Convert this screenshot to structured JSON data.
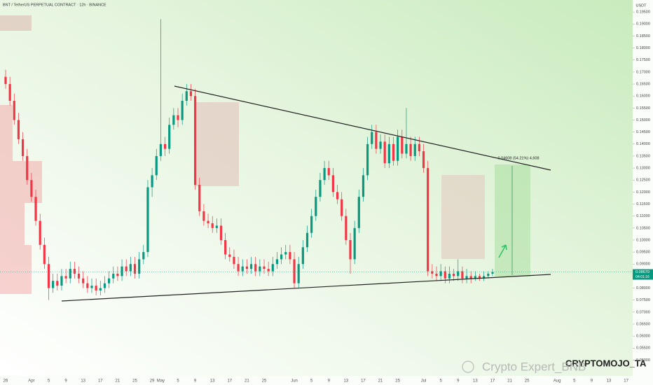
{
  "chart_data": {
    "type": "candlestick",
    "title": "BNT / TetherUS PERPETUAL CONTRACT · 12h · BINANCE",
    "currency": "USDT",
    "measure_label": "0.04608 (54.21%) 4,608",
    "price_label": "0.08670",
    "countdown": "04:01:16",
    "watermarks": [
      "CRYPTOMOJO_TA",
      "Crypto Expert_BNB"
    ],
    "up_color": "#089981",
    "down_color": "#f23645",
    "grid": false,
    "ylim": [
      0.044,
      0.2
    ],
    "yticks": [
      {
        "value": 0.05,
        "label": "0.05000"
      },
      {
        "value": 0.055,
        "label": "0.05500"
      },
      {
        "value": 0.06,
        "label": "0.06000"
      },
      {
        "value": 0.065,
        "label": "0.06500"
      },
      {
        "value": 0.07,
        "label": "0.07000"
      },
      {
        "value": 0.075,
        "label": "0.07500"
      },
      {
        "value": 0.08,
        "label": "0.08000"
      },
      {
        "value": 0.085,
        "label": "0.08500"
      },
      {
        "value": 0.09,
        "label": "0.09000"
      },
      {
        "value": 0.095,
        "label": "0.09500"
      },
      {
        "value": 0.1,
        "label": "0.10000"
      },
      {
        "value": 0.105,
        "label": "0.10500"
      },
      {
        "value": 0.11,
        "label": "0.11000"
      },
      {
        "value": 0.115,
        "label": "0.11500"
      },
      {
        "value": 0.12,
        "label": "0.12000"
      },
      {
        "value": 0.125,
        "label": "0.12500"
      },
      {
        "value": 0.13,
        "label": "0.13000"
      },
      {
        "value": 0.135,
        "label": "0.13500"
      },
      {
        "value": 0.14,
        "label": "0.14000"
      },
      {
        "value": 0.145,
        "label": "0.14500"
      },
      {
        "value": 0.15,
        "label": "0.15000"
      },
      {
        "value": 0.155,
        "label": "0.15500"
      },
      {
        "value": 0.16,
        "label": "0.16000"
      },
      {
        "value": 0.165,
        "label": "0.16500"
      },
      {
        "value": 0.17,
        "label": "0.17000"
      },
      {
        "value": 0.175,
        "label": "0.17500"
      },
      {
        "value": 0.18,
        "label": "0.18000"
      },
      {
        "value": 0.185,
        "label": "0.18500"
      },
      {
        "value": 0.19,
        "label": "0.19000"
      },
      {
        "value": 0.195,
        "label": "0.19500"
      }
    ],
    "categories": [
      "26",
      null,
      null,
      null,
      null,
      null,
      "Apr",
      null,
      null,
      null,
      "5",
      null,
      null,
      null,
      "9",
      null,
      null,
      null,
      "13",
      null,
      null,
      null,
      "17",
      null,
      null,
      null,
      "21",
      null,
      null,
      null,
      "25",
      null,
      null,
      null,
      "29",
      null,
      "May",
      null,
      null,
      null,
      "5",
      null,
      null,
      null,
      "9",
      null,
      null,
      null,
      "13",
      null,
      null,
      null,
      "17",
      null,
      null,
      null,
      "21",
      null,
      null,
      null,
      "25",
      null,
      null,
      null,
      null,
      null,
      null,
      "Jun",
      null,
      null,
      null,
      "5",
      null,
      null,
      null,
      "9",
      null,
      null,
      null,
      "13",
      null,
      null,
      null,
      "17",
      null,
      null,
      null,
      "21",
      null,
      null,
      null,
      "25",
      null,
      null,
      null,
      null,
      null,
      "Jul",
      null,
      null,
      null,
      "5",
      null,
      null,
      null,
      "9",
      null,
      null,
      null,
      "13",
      null,
      null,
      null,
      "17",
      null,
      null,
      null,
      "21",
      null,
      null,
      null,
      "25",
      null,
      null,
      null,
      null,
      null,
      null,
      "Aug",
      null,
      null,
      null,
      "5",
      null,
      null,
      null,
      "9",
      null,
      null,
      null,
      "13",
      null,
      null,
      null,
      "17"
    ],
    "ohlc": [
      [
        0.168,
        0.171,
        0.163,
        0.165
      ],
      [
        0.165,
        0.168,
        0.156,
        0.158
      ],
      [
        0.158,
        0.161,
        0.148,
        0.15
      ],
      [
        0.15,
        0.153,
        0.14,
        0.142
      ],
      [
        0.142,
        0.145,
        0.133,
        0.135
      ],
      [
        0.135,
        0.138,
        0.123,
        0.125
      ],
      [
        0.125,
        0.128,
        0.116,
        0.118
      ],
      [
        0.118,
        0.121,
        0.106,
        0.108
      ],
      [
        0.108,
        0.111,
        0.096,
        0.098
      ],
      [
        0.098,
        0.101,
        0.088,
        0.09
      ],
      [
        0.09,
        0.093,
        0.075,
        0.08
      ],
      [
        0.08,
        0.086,
        0.078,
        0.083
      ],
      [
        0.083,
        0.086,
        0.079,
        0.081
      ],
      [
        0.081,
        0.088,
        0.079,
        0.085
      ],
      [
        0.085,
        0.088,
        0.082,
        0.084
      ],
      [
        0.084,
        0.091,
        0.082,
        0.088
      ],
      [
        0.088,
        0.091,
        0.084,
        0.086
      ],
      [
        0.086,
        0.089,
        0.082,
        0.084
      ],
      [
        0.084,
        0.087,
        0.08,
        0.082
      ],
      [
        0.082,
        0.085,
        0.078,
        0.08
      ],
      [
        0.08,
        0.084,
        0.078,
        0.081
      ],
      [
        0.081,
        0.084,
        0.077,
        0.079
      ],
      [
        0.079,
        0.083,
        0.077,
        0.08
      ],
      [
        0.08,
        0.085,
        0.078,
        0.082
      ],
      [
        0.082,
        0.087,
        0.08,
        0.084
      ],
      [
        0.084,
        0.089,
        0.082,
        0.086
      ],
      [
        0.086,
        0.089,
        0.083,
        0.085
      ],
      [
        0.085,
        0.092,
        0.083,
        0.089
      ],
      [
        0.089,
        0.092,
        0.085,
        0.087
      ],
      [
        0.087,
        0.093,
        0.085,
        0.09
      ],
      [
        0.09,
        0.093,
        0.084,
        0.086
      ],
      [
        0.086,
        0.095,
        0.084,
        0.092
      ],
      [
        0.092,
        0.098,
        0.09,
        0.095
      ],
      [
        0.095,
        0.125,
        0.093,
        0.122
      ],
      [
        0.122,
        0.13,
        0.118,
        0.127
      ],
      [
        0.127,
        0.138,
        0.125,
        0.135
      ],
      [
        0.135,
        0.192,
        0.133,
        0.14
      ],
      [
        0.14,
        0.143,
        0.135,
        0.138
      ],
      [
        0.138,
        0.151,
        0.136,
        0.148
      ],
      [
        0.148,
        0.155,
        0.146,
        0.152
      ],
      [
        0.152,
        0.155,
        0.147,
        0.15
      ],
      [
        0.15,
        0.161,
        0.148,
        0.158
      ],
      [
        0.158,
        0.165,
        0.156,
        0.162
      ],
      [
        0.162,
        0.165,
        0.158,
        0.16
      ],
      [
        0.16,
        0.163,
        0.121,
        0.123
      ],
      [
        0.123,
        0.126,
        0.11,
        0.112
      ],
      [
        0.112,
        0.115,
        0.106,
        0.108
      ],
      [
        0.108,
        0.111,
        0.105,
        0.107
      ],
      [
        0.107,
        0.11,
        0.103,
        0.105
      ],
      [
        0.105,
        0.109,
        0.103,
        0.106
      ],
      [
        0.106,
        0.109,
        0.098,
        0.1
      ],
      [
        0.1,
        0.103,
        0.092,
        0.094
      ],
      [
        0.094,
        0.097,
        0.091,
        0.093
      ],
      [
        0.093,
        0.096,
        0.088,
        0.09
      ],
      [
        0.09,
        0.093,
        0.085,
        0.087
      ],
      [
        0.087,
        0.092,
        0.085,
        0.089
      ],
      [
        0.089,
        0.092,
        0.086,
        0.088
      ],
      [
        0.088,
        0.093,
        0.086,
        0.09
      ],
      [
        0.09,
        0.093,
        0.085,
        0.087
      ],
      [
        0.087,
        0.092,
        0.085,
        0.089
      ],
      [
        0.089,
        0.092,
        0.086,
        0.088
      ],
      [
        0.088,
        0.091,
        0.085,
        0.087
      ],
      [
        0.087,
        0.093,
        0.085,
        0.09
      ],
      [
        0.09,
        0.095,
        0.088,
        0.092
      ],
      [
        0.092,
        0.097,
        0.09,
        0.094
      ],
      [
        0.094,
        0.098,
        0.092,
        0.095
      ],
      [
        0.095,
        0.098,
        0.09,
        0.092
      ],
      [
        0.092,
        0.095,
        0.08,
        0.082
      ],
      [
        0.082,
        0.093,
        0.08,
        0.09
      ],
      [
        0.09,
        0.1,
        0.088,
        0.097
      ],
      [
        0.097,
        0.106,
        0.095,
        0.103
      ],
      [
        0.103,
        0.113,
        0.101,
        0.11
      ],
      [
        0.11,
        0.121,
        0.108,
        0.118
      ],
      [
        0.118,
        0.128,
        0.116,
        0.125
      ],
      [
        0.125,
        0.133,
        0.123,
        0.13
      ],
      [
        0.13,
        0.133,
        0.125,
        0.127
      ],
      [
        0.127,
        0.13,
        0.118,
        0.12
      ],
      [
        0.12,
        0.123,
        0.115,
        0.117
      ],
      [
        0.117,
        0.12,
        0.108,
        0.11
      ],
      [
        0.11,
        0.113,
        0.098,
        0.1
      ],
      [
        0.1,
        0.103,
        0.086,
        0.092
      ],
      [
        0.092,
        0.108,
        0.09,
        0.105
      ],
      [
        0.105,
        0.121,
        0.103,
        0.118
      ],
      [
        0.118,
        0.13,
        0.116,
        0.127
      ],
      [
        0.127,
        0.143,
        0.125,
        0.14
      ],
      [
        0.14,
        0.148,
        0.138,
        0.145
      ],
      [
        0.145,
        0.148,
        0.136,
        0.138
      ],
      [
        0.138,
        0.144,
        0.136,
        0.141
      ],
      [
        0.141,
        0.144,
        0.13,
        0.132
      ],
      [
        0.132,
        0.143,
        0.13,
        0.14
      ],
      [
        0.14,
        0.143,
        0.131,
        0.133
      ],
      [
        0.133,
        0.146,
        0.131,
        0.143
      ],
      [
        0.143,
        0.146,
        0.134,
        0.136
      ],
      [
        0.136,
        0.155,
        0.134,
        0.14
      ],
      [
        0.14,
        0.143,
        0.133,
        0.135
      ],
      [
        0.135,
        0.143,
        0.133,
        0.14
      ],
      [
        0.14,
        0.143,
        0.135,
        0.137
      ],
      [
        0.137,
        0.14,
        0.128,
        0.13
      ],
      [
        0.13,
        0.133,
        0.085,
        0.087
      ],
      [
        0.087,
        0.09,
        0.084,
        0.086
      ],
      [
        0.086,
        0.089,
        0.083,
        0.085
      ],
      [
        0.085,
        0.09,
        0.083,
        0.087
      ],
      [
        0.087,
        0.089,
        0.082,
        0.084
      ],
      [
        0.084,
        0.089,
        0.082,
        0.086
      ],
      [
        0.086,
        0.088,
        0.083,
        0.085
      ],
      [
        0.085,
        0.092,
        0.083,
        0.087
      ],
      [
        0.087,
        0.089,
        0.082,
        0.084
      ],
      [
        0.084,
        0.088,
        0.082,
        0.085
      ],
      [
        0.085,
        0.087,
        0.082,
        0.084
      ],
      [
        0.084,
        0.087,
        0.083,
        0.085
      ],
      [
        0.085,
        0.086,
        0.083,
        0.084
      ],
      [
        0.084,
        0.087,
        0.083,
        0.085
      ],
      [
        0.085,
        0.087,
        0.084,
        0.086
      ],
      [
        0.086,
        0.088,
        0.085,
        0.0867
      ],
      null,
      null,
      null,
      null,
      null,
      null,
      null,
      null,
      null,
      null,
      null,
      null,
      null,
      null,
      null,
      null,
      null,
      null,
      null,
      null,
      null,
      null,
      null,
      null,
      null,
      null,
      null,
      null,
      null,
      null,
      null
    ]
  }
}
